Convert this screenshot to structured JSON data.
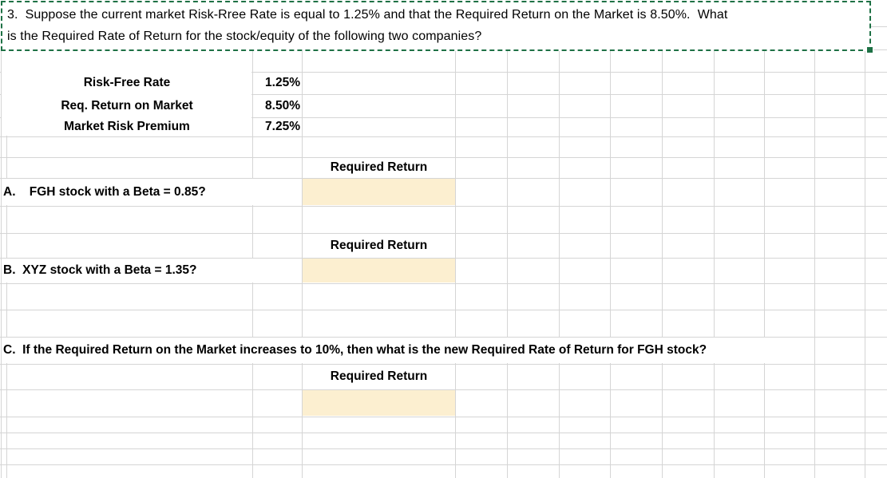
{
  "question": {
    "line1": "3.  Suppose the current market Risk-Rree Rate is equal to 1.25% and that the Required Return on the Market is 8.50%.  What",
    "line2": "is the Required Rate of Return for the stock/equity of the following two companies?"
  },
  "rates": [
    {
      "label": "Risk-Free Rate",
      "value": "1.25%"
    },
    {
      "label": "Req. Return on Market",
      "value": "8.50%"
    },
    {
      "label": "Market Risk Premium",
      "value": "7.25%"
    }
  ],
  "sections": [
    {
      "id": "A",
      "label": "A.    FGH stock with a Beta = 0.85?",
      "answer_header": "Required Return",
      "answer_value": ""
    },
    {
      "id": "B",
      "label": "B.  XYZ stock with a Beta = 1.35?",
      "answer_header": "Required Return",
      "answer_value": ""
    },
    {
      "id": "C",
      "label": "C.  If the Required Return on the Market increases to 10%, then what is the new Required Rate of Return for FGH stock?",
      "answer_header": "Required Return",
      "answer_value": ""
    }
  ],
  "colors": {
    "marquee_green": "#1e7145",
    "answer_fill": "#fcefd0",
    "gridline": "#d5d5d5"
  }
}
